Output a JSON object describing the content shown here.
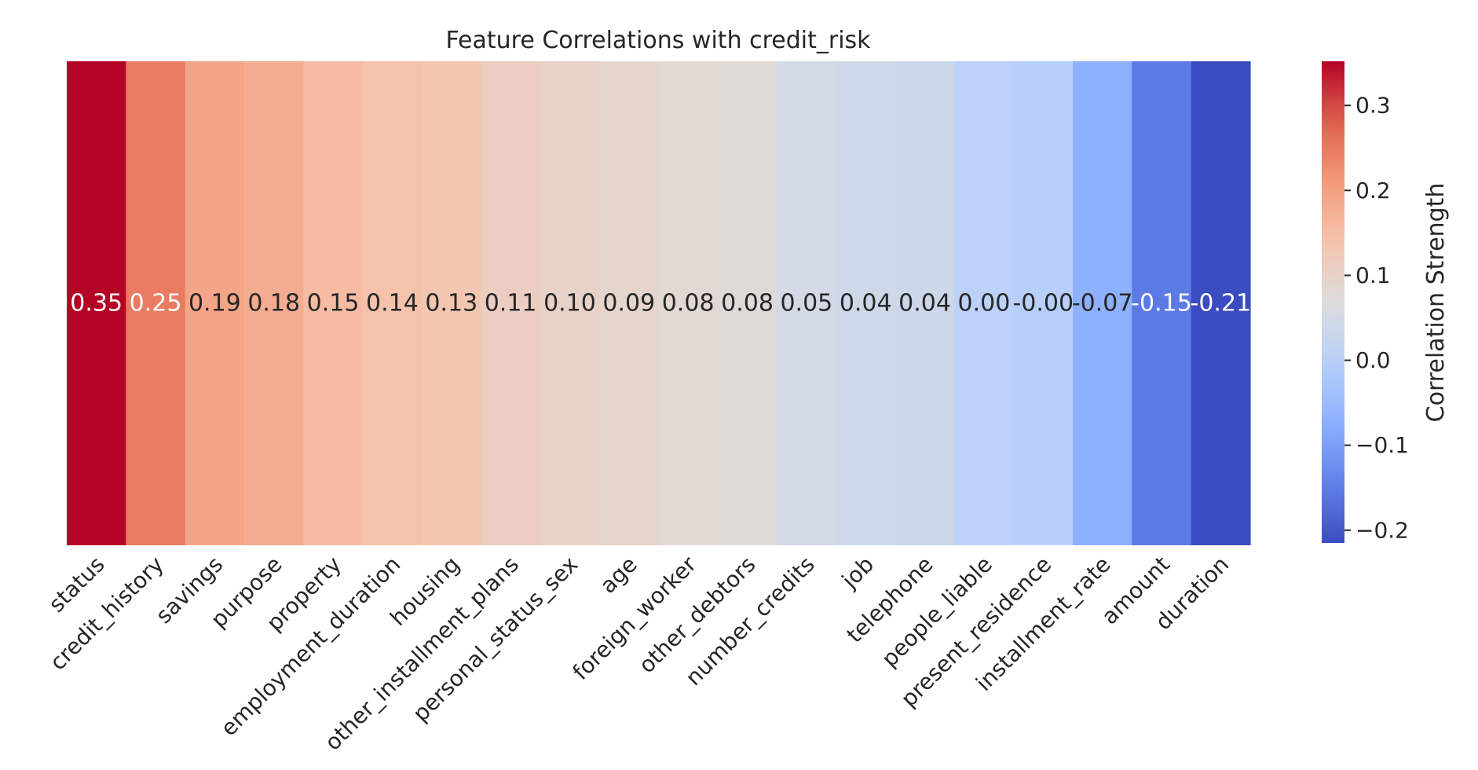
{
  "chart_data": {
    "type": "heatmap",
    "title": "Feature Correlations with credit_risk",
    "categories": [
      "status",
      "credit_history",
      "savings",
      "purpose",
      "property",
      "employment_duration",
      "housing",
      "other_installment_plans",
      "personal_status_sex",
      "age",
      "foreign_worker",
      "other_debtors",
      "number_credits",
      "job",
      "telephone",
      "people_liable",
      "present_residence",
      "installment_rate",
      "amount",
      "duration"
    ],
    "values": [
      0.352,
      0.248,
      0.193,
      0.18,
      0.153,
      0.142,
      0.134,
      0.11,
      0.101,
      0.092,
      0.082,
      0.078,
      0.049,
      0.04,
      0.036,
      0.003,
      -0.003,
      -0.072,
      -0.155,
      -0.215
    ],
    "value_labels": [
      "0.35",
      "0.25",
      "0.19",
      "0.18",
      "0.15",
      "0.14",
      "0.13",
      "0.11",
      "0.10",
      "0.09",
      "0.08",
      "0.08",
      "0.05",
      "0.04",
      "0.04",
      "0.00",
      "-0.00",
      "-0.07",
      "-0.15",
      "-0.21"
    ],
    "colormap": "coolwarm",
    "colorbar": {
      "label": "Correlation Strength",
      "range": [
        -0.215,
        0.352
      ],
      "ticks": [
        0.3,
        0.2,
        0.1,
        0.0,
        -0.1,
        -0.2
      ],
      "tick_labels": [
        "0.3",
        "0.2",
        "0.1",
        "0.0",
        "−0.1",
        "−0.2"
      ]
    }
  }
}
